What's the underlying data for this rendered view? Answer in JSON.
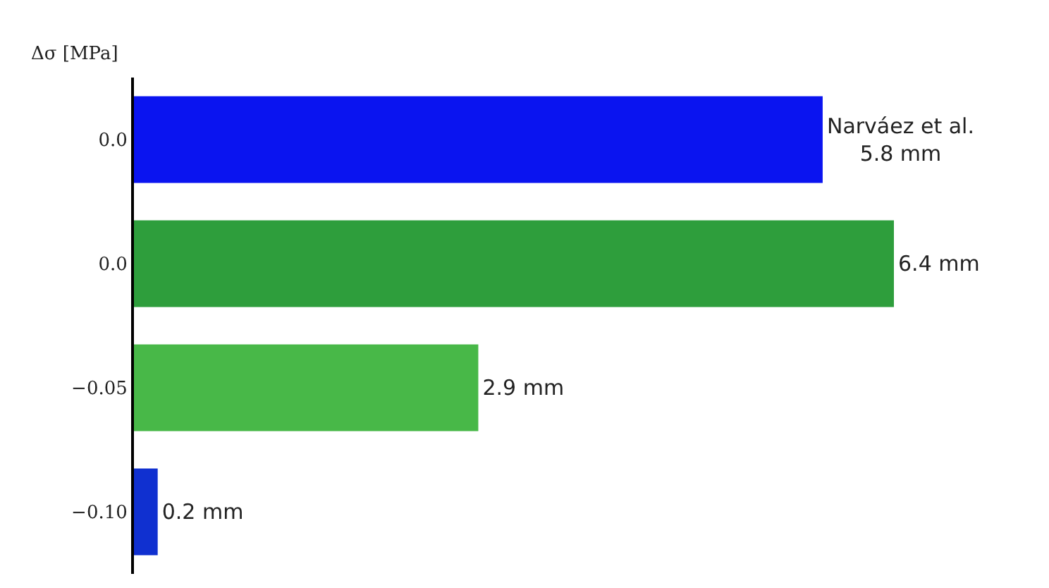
{
  "chart_data": {
    "type": "bar",
    "orientation": "horizontal",
    "ylabel": "Δσ [MPa]",
    "categories": [
      "0.0",
      "0.0",
      "−0.05",
      "−0.10"
    ],
    "values": [
      5.8,
      6.4,
      2.9,
      0.2
    ],
    "colors": [
      "#0a14f0",
      "#2e9e3c",
      "#48b848",
      "#1030d0"
    ],
    "value_labels": [
      "Narváez et al.\n5.8 mm",
      "6.4 mm",
      "2.9 mm",
      "0.2 mm"
    ],
    "legend": false
  }
}
